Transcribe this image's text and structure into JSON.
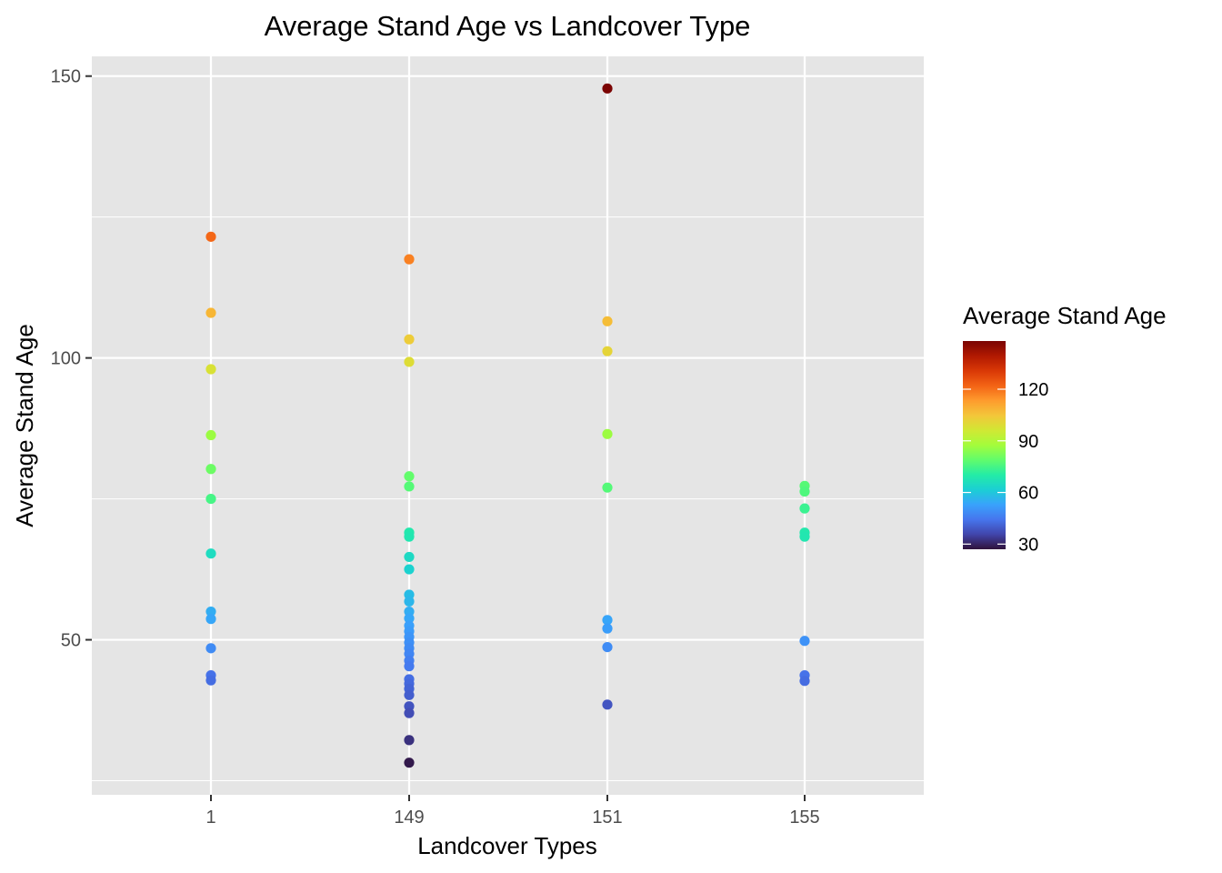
{
  "chart_data": {
    "type": "scatter",
    "title": "Average Stand Age vs Landcover Type",
    "xlabel": "Landcover Types",
    "ylabel": "Average Stand Age",
    "categories": [
      "1",
      "149",
      "151",
      "155"
    ],
    "y_ticks": [
      50,
      100,
      150
    ],
    "y_minor_ticks": [
      25,
      75,
      125
    ],
    "ylim": [
      22.5,
      153.5
    ],
    "grid": true,
    "panel_background": "#e5e5e5",
    "grid_color": "#ffffff",
    "legend": {
      "title": "Average Stand Age",
      "position": "right",
      "ticks": [
        30,
        60,
        90,
        120
      ],
      "range": [
        27,
        148
      ],
      "palette": [
        "#30123b",
        "#4145ab",
        "#4675ed",
        "#39a2fc",
        "#1bcfd4",
        "#24eca6",
        "#61fc6c",
        "#a4fc3b",
        "#d1e834",
        "#f3c63a",
        "#fe9b2d",
        "#f36315",
        "#d93806",
        "#b11901",
        "#7a0403"
      ]
    },
    "points": [
      {
        "x": "1",
        "y": 121.5
      },
      {
        "x": "1",
        "y": 108
      },
      {
        "x": "1",
        "y": 98
      },
      {
        "x": "1",
        "y": 86.3
      },
      {
        "x": "1",
        "y": 80.3
      },
      {
        "x": "1",
        "y": 75
      },
      {
        "x": "1",
        "y": 65.3
      },
      {
        "x": "1",
        "y": 55
      },
      {
        "x": "1",
        "y": 53.7
      },
      {
        "x": "1",
        "y": 48.5
      },
      {
        "x": "1",
        "y": 43.7
      },
      {
        "x": "1",
        "y": 42.8
      },
      {
        "x": "149",
        "y": 117.5
      },
      {
        "x": "149",
        "y": 103.3
      },
      {
        "x": "149",
        "y": 99.3
      },
      {
        "x": "149",
        "y": 79
      },
      {
        "x": "149",
        "y": 77.2
      },
      {
        "x": "149",
        "y": 69
      },
      {
        "x": "149",
        "y": 68.3
      },
      {
        "x": "149",
        "y": 64.7
      },
      {
        "x": "149",
        "y": 62.5
      },
      {
        "x": "149",
        "y": 58
      },
      {
        "x": "149",
        "y": 56.8
      },
      {
        "x": "149",
        "y": 55
      },
      {
        "x": "149",
        "y": 53.8
      },
      {
        "x": "149",
        "y": 52.5
      },
      {
        "x": "149",
        "y": 51.5
      },
      {
        "x": "149",
        "y": 50.5
      },
      {
        "x": "149",
        "y": 49.5
      },
      {
        "x": "149",
        "y": 48.5
      },
      {
        "x": "149",
        "y": 47.5
      },
      {
        "x": "149",
        "y": 46.3
      },
      {
        "x": "149",
        "y": 45.3
      },
      {
        "x": "149",
        "y": 43
      },
      {
        "x": "149",
        "y": 42.2
      },
      {
        "x": "149",
        "y": 41.3
      },
      {
        "x": "149",
        "y": 40.2
      },
      {
        "x": "149",
        "y": 38.2
      },
      {
        "x": "149",
        "y": 37
      },
      {
        "x": "149",
        "y": 32.2
      },
      {
        "x": "149",
        "y": 28.2
      },
      {
        "x": "151",
        "y": 147.8
      },
      {
        "x": "151",
        "y": 106.5
      },
      {
        "x": "151",
        "y": 101.2
      },
      {
        "x": "151",
        "y": 86.5
      },
      {
        "x": "151",
        "y": 77
      },
      {
        "x": "151",
        "y": 53.5
      },
      {
        "x": "151",
        "y": 52
      },
      {
        "x": "151",
        "y": 48.7
      },
      {
        "x": "151",
        "y": 38.5
      },
      {
        "x": "155",
        "y": 77.3
      },
      {
        "x": "155",
        "y": 76.3
      },
      {
        "x": "155",
        "y": 73.3
      },
      {
        "x": "155",
        "y": 69
      },
      {
        "x": "155",
        "y": 68.3
      },
      {
        "x": "155",
        "y": 49.8
      },
      {
        "x": "155",
        "y": 43.7
      },
      {
        "x": "155",
        "y": 42.7
      }
    ]
  }
}
